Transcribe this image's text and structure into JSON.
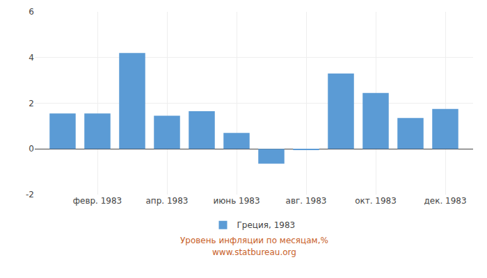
{
  "chart_data": {
    "type": "bar",
    "categories": [
      null,
      "февр. 1983",
      null,
      "апр. 1983",
      null,
      "июнь 1983",
      null,
      "авг. 1983",
      null,
      "окт. 1983",
      null,
      "дек. 1983"
    ],
    "series": [
      {
        "name": "Греция, 1983",
        "color": "#5b9bd5",
        "values": [
          1.55,
          1.55,
          4.2,
          1.45,
          1.65,
          0.7,
          -0.65,
          -0.05,
          3.3,
          2.45,
          1.35,
          1.75
        ]
      }
    ],
    "ylim": [
      -2,
      6
    ],
    "yticks": [
      -2,
      0,
      2,
      4,
      6
    ],
    "grid": true,
    "legend": "bottom",
    "annotations": [
      "Уровень инфляции по месяцам,%",
      "www.statbureau.org"
    ]
  }
}
